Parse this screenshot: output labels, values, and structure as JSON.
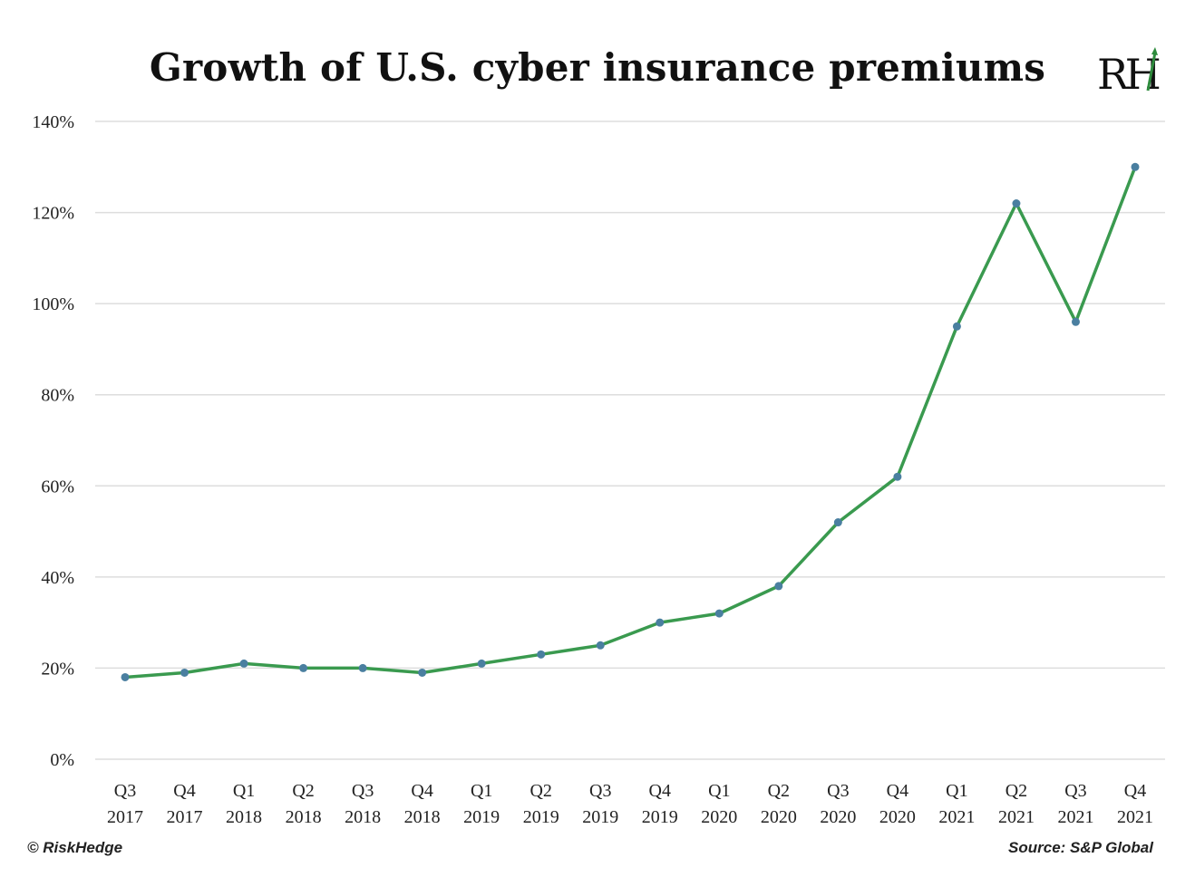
{
  "header": {
    "title": "Growth of U.S. cyber insurance premiums",
    "logo_text": "RH"
  },
  "footer": {
    "credit": "© RiskHedge",
    "source": "Source: S&P Global"
  },
  "colors": {
    "line": "#3a9a4f",
    "marker": "#4a7fa0",
    "grid": "#dddddd",
    "logo_accent": "#2e8b3d"
  },
  "chart_data": {
    "type": "line",
    "title": "Growth of U.S. cyber insurance premiums",
    "xlabel": "",
    "ylabel": "",
    "ylim": [
      0,
      140
    ],
    "yticks": [
      "0%",
      "20%",
      "40%",
      "60%",
      "80%",
      "100%",
      "120%",
      "140%"
    ],
    "categories": [
      [
        "Q3",
        "2017"
      ],
      [
        "Q4",
        "2017"
      ],
      [
        "Q1",
        "2018"
      ],
      [
        "Q2",
        "2018"
      ],
      [
        "Q3",
        "2018"
      ],
      [
        "Q4",
        "2018"
      ],
      [
        "Q1",
        "2019"
      ],
      [
        "Q2",
        "2019"
      ],
      [
        "Q3",
        "2019"
      ],
      [
        "Q4",
        "2019"
      ],
      [
        "Q1",
        "2020"
      ],
      [
        "Q2",
        "2020"
      ],
      [
        "Q3",
        "2020"
      ],
      [
        "Q4",
        "2020"
      ],
      [
        "Q1",
        "2021"
      ],
      [
        "Q2",
        "2021"
      ],
      [
        "Q3",
        "2021"
      ],
      [
        "Q4",
        "2021"
      ]
    ],
    "values": [
      18,
      19,
      21,
      20,
      20,
      19,
      21,
      23,
      25,
      30,
      32,
      38,
      52,
      62,
      95,
      122,
      96,
      130
    ],
    "grid": true,
    "legend": "none"
  }
}
